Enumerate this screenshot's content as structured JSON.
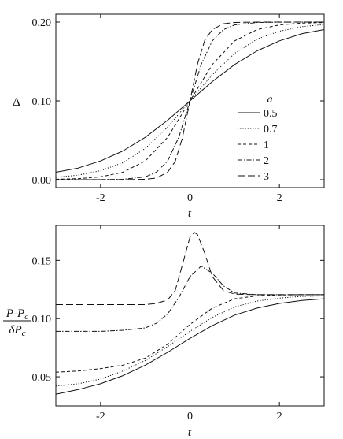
{
  "chart_data": [
    {
      "type": "line",
      "xlabel": "t",
      "ylabel": "Δ",
      "xlim": [
        -3,
        3
      ],
      "ylim": [
        -0.01,
        0.21
      ],
      "xticks": [
        -2,
        0,
        2
      ],
      "xtick_labels": [
        "-2",
        "0",
        "2"
      ],
      "yticks": [
        0.0,
        0.1,
        0.2
      ],
      "ytick_labels": [
        "0.00",
        "0.10",
        "0.20"
      ],
      "grid": false,
      "legend": {
        "title": "a",
        "placement": "right, middle"
      },
      "series": [
        {
          "name": "0.5",
          "dash": "solid",
          "x": [
            -3,
            -2.5,
            -2,
            -1.5,
            -1,
            -0.5,
            0,
            0.5,
            1,
            1.5,
            2,
            2.5,
            3
          ],
          "y": [
            0.0095,
            0.0148,
            0.0238,
            0.0365,
            0.0538,
            0.0755,
            0.1,
            0.1245,
            0.1462,
            0.1635,
            0.1762,
            0.1852,
            0.1905
          ]
        },
        {
          "name": "0.7",
          "dash": "dotted",
          "x": [
            -3,
            -2.5,
            -2,
            -1.5,
            -1,
            -0.5,
            0,
            0.5,
            1,
            1.5,
            2,
            2.5,
            3
          ],
          "y": [
            0.0031,
            0.0058,
            0.0115,
            0.0216,
            0.0397,
            0.0668,
            0.1,
            0.1332,
            0.1603,
            0.1784,
            0.1885,
            0.1942,
            0.1969
          ]
        },
        {
          "name": "1",
          "dash": "dashed",
          "x": [
            -3,
            -2.5,
            -2,
            -1.5,
            -1,
            -0.5,
            0,
            0.5,
            1,
            1.5,
            2,
            2.5,
            3
          ],
          "y": [
            0.0005,
            0.0013,
            0.0036,
            0.0095,
            0.0238,
            0.0538,
            0.1,
            0.1462,
            0.1762,
            0.1905,
            0.1964,
            0.1987,
            0.1995
          ]
        },
        {
          "name": "2",
          "dash": "dash-dot",
          "x": [
            -3,
            -2,
            -1.5,
            -1,
            -0.75,
            -0.5,
            -0.25,
            0,
            0.25,
            0.5,
            0.75,
            1,
            1.5,
            2,
            3
          ],
          "y": [
            0.0,
            0.0001,
            0.0005,
            0.0036,
            0.0095,
            0.0238,
            0.0538,
            0.1,
            0.1462,
            0.1762,
            0.1905,
            0.1964,
            0.1995,
            0.1999,
            0.2
          ]
        },
        {
          "name": "3",
          "dash": "long-dash",
          "x": [
            -3,
            -1.5,
            -1,
            -0.75,
            -0.5,
            -0.33,
            -0.17,
            0,
            0.17,
            0.33,
            0.5,
            0.75,
            1,
            1.5,
            3
          ],
          "y": [
            0.0,
            0.0,
            0.0005,
            0.0021,
            0.0095,
            0.0231,
            0.0528,
            0.1,
            0.1472,
            0.1769,
            0.1905,
            0.1979,
            0.1995,
            0.2,
            0.2
          ]
        }
      ]
    },
    {
      "type": "line",
      "xlabel": "t",
      "ylabel_numerator": "P-P",
      "ylabel_numerator_sub": "c",
      "ylabel_denominator": "δP",
      "ylabel_denominator_sub": "c",
      "xlim": [
        -3,
        3
      ],
      "ylim": [
        0.025,
        0.18
      ],
      "xticks": [
        -2,
        0,
        2
      ],
      "xtick_labels": [
        "-2",
        "0",
        "2"
      ],
      "yticks": [
        0.05,
        0.1,
        0.15
      ],
      "ytick_labels": [
        "0.05",
        "0.10",
        "0.15"
      ],
      "grid": false,
      "series": [
        {
          "dash": "solid",
          "x": [
            -3,
            -2.5,
            -2,
            -1.5,
            -1,
            -0.5,
            0,
            0.5,
            1,
            1.5,
            2,
            2.5,
            3
          ],
          "y": [
            0.035,
            0.039,
            0.044,
            0.051,
            0.06,
            0.071,
            0.083,
            0.094,
            0.103,
            0.109,
            0.113,
            0.1155,
            0.117
          ]
        },
        {
          "dash": "dotted",
          "x": [
            -3,
            -2.5,
            -2,
            -1.5,
            -1,
            -0.5,
            0,
            0.5,
            1,
            1.5,
            2,
            2.5,
            3
          ],
          "y": [
            0.042,
            0.044,
            0.048,
            0.055,
            0.064,
            0.076,
            0.089,
            0.101,
            0.11,
            0.115,
            0.1175,
            0.119,
            0.1195
          ]
        },
        {
          "dash": "dashed",
          "x": [
            -3,
            -2.5,
            -2,
            -1.5,
            -1,
            -0.5,
            0,
            0.5,
            1,
            1.5,
            2,
            2.5,
            3
          ],
          "y": [
            0.054,
            0.055,
            0.057,
            0.06,
            0.066,
            0.078,
            0.095,
            0.109,
            0.117,
            0.1195,
            0.1202,
            0.1205,
            0.1205
          ]
        },
        {
          "dash": "dash-dot",
          "x": [
            -3,
            -2,
            -1.5,
            -1,
            -0.75,
            -0.5,
            -0.25,
            0,
            0.25,
            0.5,
            0.75,
            1,
            1.5,
            2,
            3
          ],
          "y": [
            0.089,
            0.089,
            0.09,
            0.092,
            0.096,
            0.104,
            0.118,
            0.136,
            0.145,
            0.139,
            0.128,
            0.122,
            0.1205,
            0.1205,
            0.1205
          ]
        },
        {
          "dash": "long-dash",
          "x": [
            -3,
            -1.5,
            -1,
            -0.75,
            -0.5,
            -0.33,
            -0.17,
            0,
            0.1,
            0.17,
            0.33,
            0.5,
            0.75,
            1,
            1.5,
            3
          ],
          "y": [
            0.112,
            0.112,
            0.112,
            0.113,
            0.116,
            0.124,
            0.146,
            0.17,
            0.174,
            0.172,
            0.156,
            0.136,
            0.124,
            0.121,
            0.1205,
            0.1205
          ]
        }
      ]
    }
  ]
}
